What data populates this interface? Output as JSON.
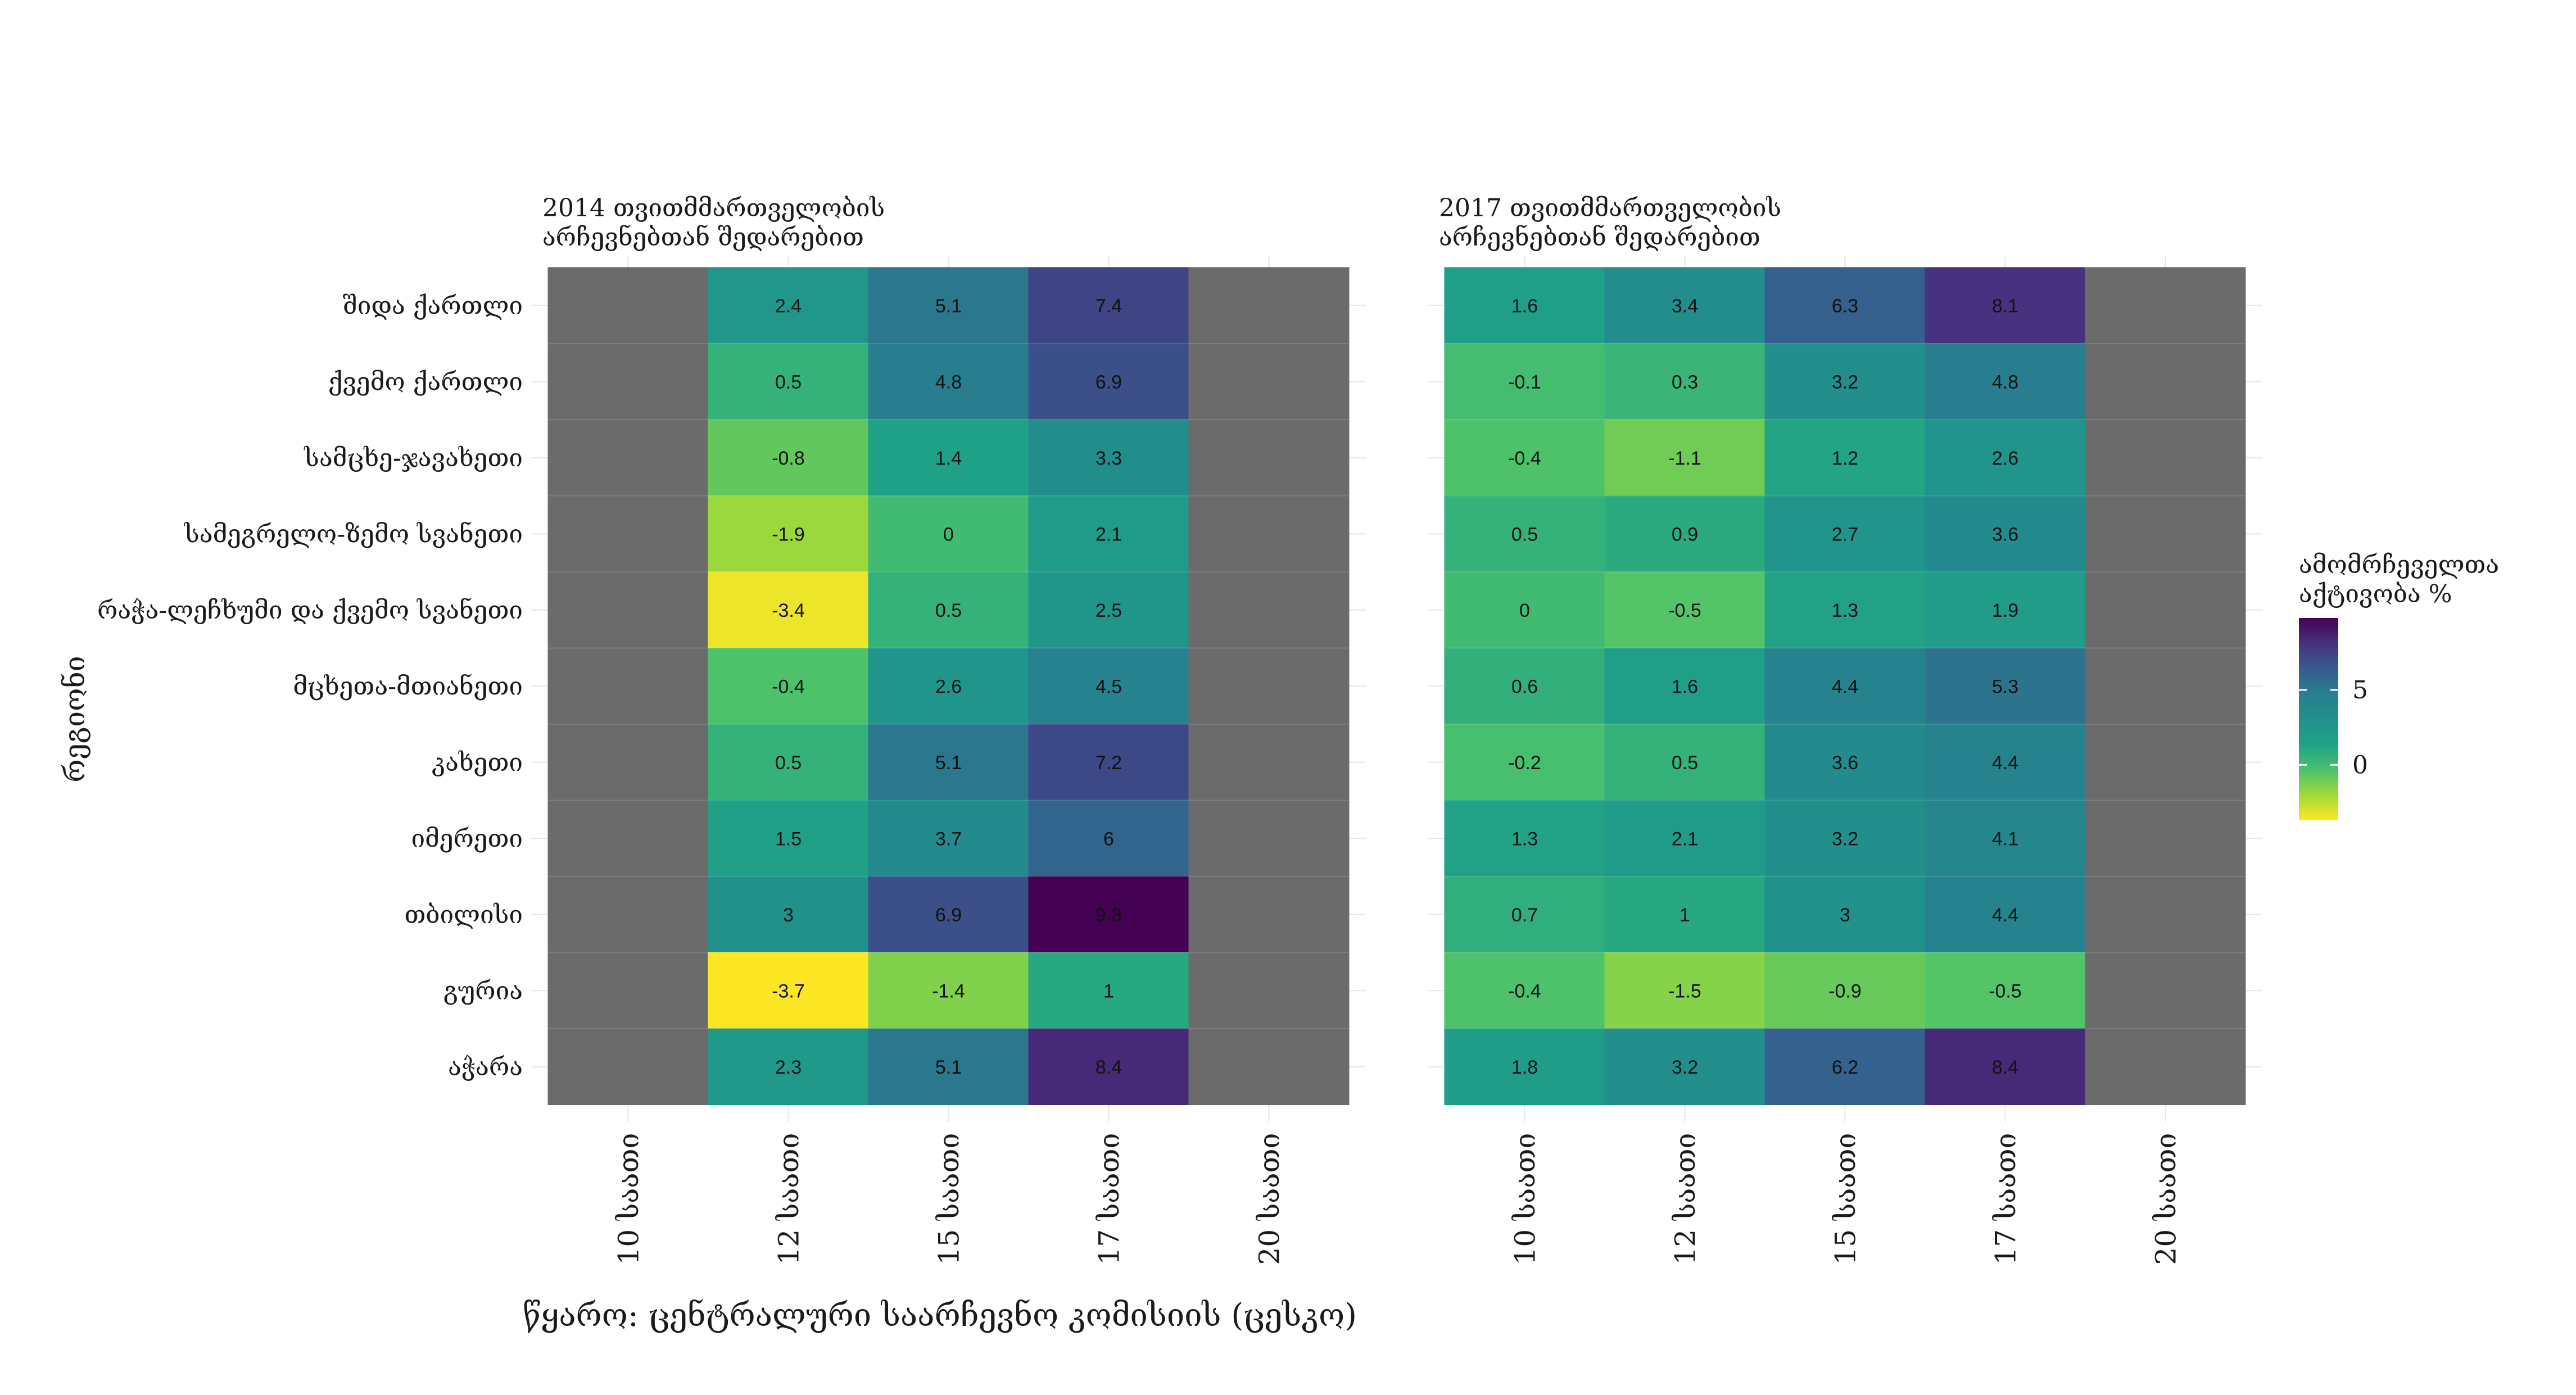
{
  "chart_data": [
    {
      "type": "heatmap",
      "title": "2014 თვითმმართველობის\nარჩევნებთან შედარებით",
      "x": [
        "10 საათი",
        "12 საათი",
        "15 საათი",
        "17 საათი",
        "20 საათი"
      ],
      "y": [
        "შიდა ქართლი",
        "ქვემო ქართლი",
        "სამცხე-ჯავახეთი",
        "სამეგრელო-ზემო სვანეთი",
        "რაჭა-ლეჩხუმი და ქვემო სვანეთი",
        "მცხეთა-მთიანეთი",
        "კახეთი",
        "იმერეთი",
        "თბილისი",
        "გურია",
        "აჭარა"
      ],
      "values": [
        [
          null,
          2.4,
          5.1,
          7.4,
          null
        ],
        [
          null,
          0.5,
          4.8,
          6.9,
          null
        ],
        [
          null,
          -0.8,
          1.4,
          3.3,
          null
        ],
        [
          null,
          -1.9,
          0,
          2.1,
          null
        ],
        [
          null,
          -3.4,
          0.5,
          2.5,
          null
        ],
        [
          null,
          -0.4,
          2.6,
          4.5,
          null
        ],
        [
          null,
          0.5,
          5.1,
          7.2,
          null
        ],
        [
          null,
          1.5,
          3.7,
          6,
          null
        ],
        [
          null,
          3,
          6.9,
          9.8,
          null
        ],
        [
          null,
          -3.7,
          -1.4,
          1,
          null
        ],
        [
          null,
          2.3,
          5.1,
          8.4,
          null
        ]
      ]
    },
    {
      "type": "heatmap",
      "title": "2017 თვითმმართველობის\nარჩევნებთან შედარებით",
      "x": [
        "10 საათი",
        "12 საათი",
        "15 საათი",
        "17 საათი",
        "20 საათი"
      ],
      "y": [
        "შიდა ქართლი",
        "ქვემო ქართლი",
        "სამცხე-ჯავახეთი",
        "სამეგრელო-ზემო სვანეთი",
        "რაჭა-ლეჩხუმი და ქვემო სვანეთი",
        "მცხეთა-მთიანეთი",
        "კახეთი",
        "იმერეთი",
        "თბილისი",
        "გურია",
        "აჭარა"
      ],
      "values": [
        [
          1.6,
          3.4,
          6.3,
          8.1,
          null
        ],
        [
          -0.1,
          0.3,
          3.2,
          4.8,
          null
        ],
        [
          -0.4,
          -1.1,
          1.2,
          2.6,
          null
        ],
        [
          0.5,
          0.9,
          2.7,
          3.6,
          null
        ],
        [
          0,
          -0.5,
          1.3,
          1.9,
          null
        ],
        [
          0.6,
          1.6,
          4.4,
          5.3,
          null
        ],
        [
          -0.2,
          0.5,
          3.6,
          4.4,
          null
        ],
        [
          1.3,
          2.1,
          3.2,
          4.1,
          null
        ],
        [
          0.7,
          1,
          3,
          4.4,
          null
        ],
        [
          -0.4,
          -1.5,
          -0.9,
          -0.5,
          null
        ],
        [
          1.8,
          3.2,
          6.2,
          8.4,
          null
        ]
      ]
    }
  ],
  "y_axis_title": "რეგიონი",
  "legend": {
    "title": "ამომრჩეველთა\nაქტივობა %",
    "ticks": [
      5,
      0
    ],
    "range": [
      -3.7,
      9.8
    ],
    "palette": "viridis",
    "missing_color": "#6b6b6b"
  },
  "caption": "წყარო: ცენტრალური საარჩევნო კომისიის (ცესკო)"
}
